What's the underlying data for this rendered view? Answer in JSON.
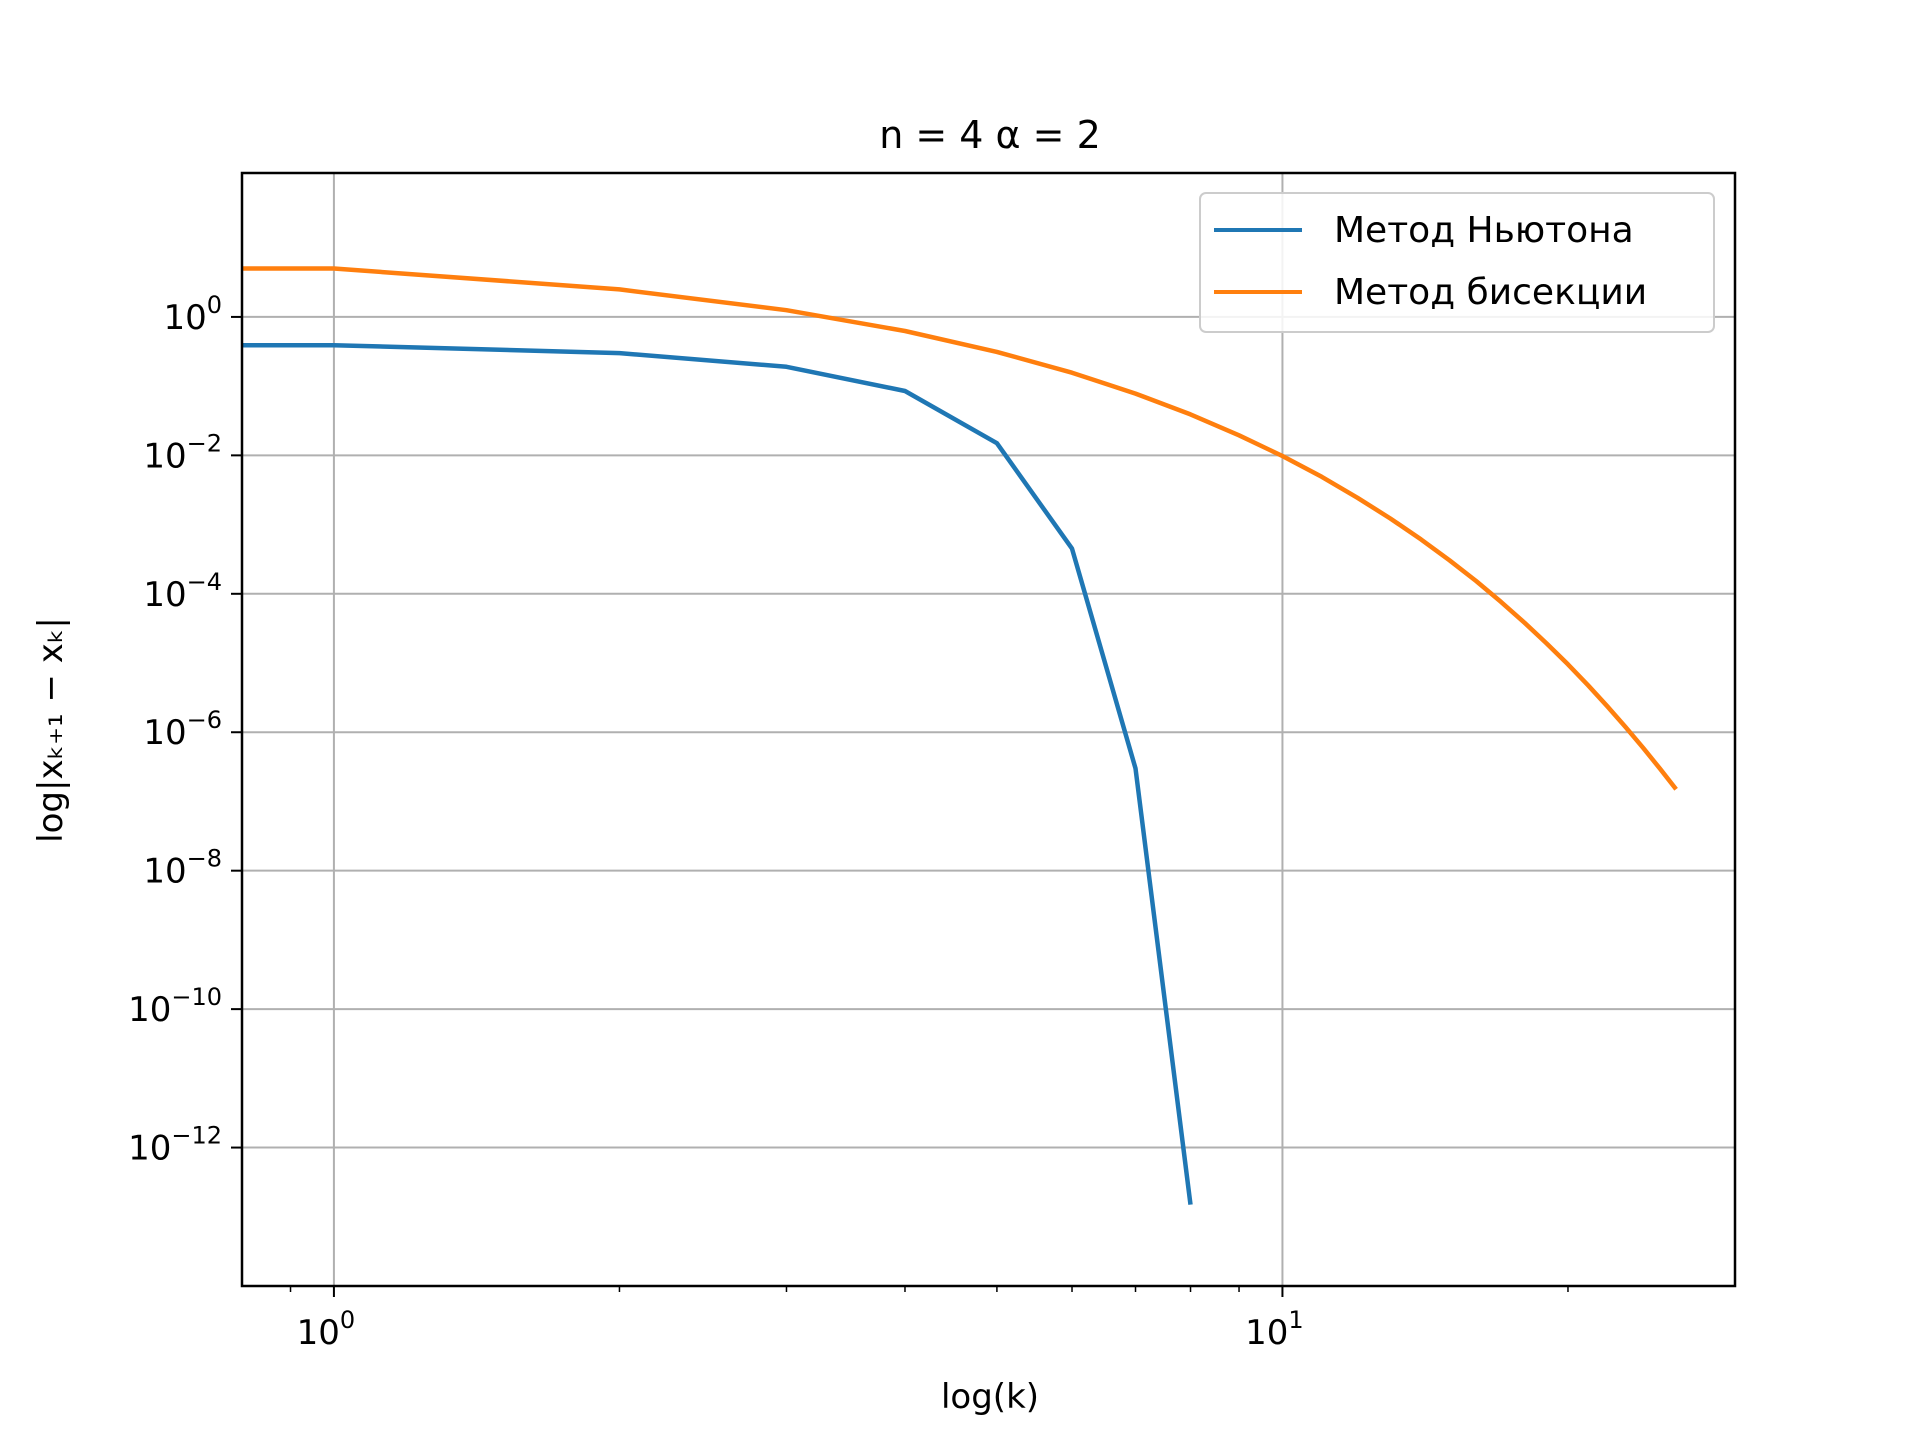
{
  "chart_data": {
    "type": "line",
    "title": "n = 4 α = 2",
    "xlabel": "log(k)",
    "ylabel": "log|xₖ₊₁ − xₖ|",
    "xscale": "log",
    "yscale": "log",
    "xlim": [
      0.8,
      30
    ],
    "ylim": [
      1e-14,
      120
    ],
    "x_ticks": [
      {
        "value": 1,
        "base": "10",
        "exp": "0"
      },
      {
        "value": 10,
        "base": "10",
        "exp": "1"
      }
    ],
    "y_ticks": [
      {
        "value": 1,
        "base": "10",
        "exp": "0"
      },
      {
        "value": 0.01,
        "base": "10",
        "exp": "−2"
      },
      {
        "value": 0.0001,
        "base": "10",
        "exp": "−4"
      },
      {
        "value": 1e-06,
        "base": "10",
        "exp": "−6"
      },
      {
        "value": 1e-08,
        "base": "10",
        "exp": "−8"
      },
      {
        "value": 1e-10,
        "base": "10",
        "exp": "−10"
      },
      {
        "value": 1e-12,
        "base": "10",
        "exp": "−12"
      }
    ],
    "grid": true,
    "legend_position": "top-right",
    "series": [
      {
        "name": "Метод Ньютона",
        "color": "#1f77b4",
        "x": [
          0.8,
          1,
          2,
          3,
          4,
          5,
          6,
          7,
          8
        ],
        "y": [
          0.39,
          0.39,
          0.3,
          0.19,
          0.085,
          0.015,
          0.00045,
          3e-07,
          1.5e-13
        ]
      },
      {
        "name": "Метод бисекции",
        "color": "#ff7f0e",
        "x": [
          0.8,
          1,
          2,
          3,
          4,
          5,
          6,
          7,
          8,
          9,
          10,
          11,
          12,
          13,
          14,
          15,
          16,
          17,
          18,
          19,
          20,
          21,
          22,
          23,
          24,
          25,
          26
        ],
        "y": [
          5,
          5,
          2.5,
          1.25,
          0.625,
          0.3125,
          0.15625,
          0.078,
          0.039,
          0.0195,
          0.0098,
          0.0049,
          0.00244,
          0.00122,
          0.00061,
          0.000305,
          0.000153,
          7.63e-05,
          3.81e-05,
          1.91e-05,
          9.54e-06,
          4.77e-06,
          2.38e-06,
          1.19e-06,
          5.96e-07,
          2.98e-07,
          1.5e-07
        ]
      }
    ]
  }
}
